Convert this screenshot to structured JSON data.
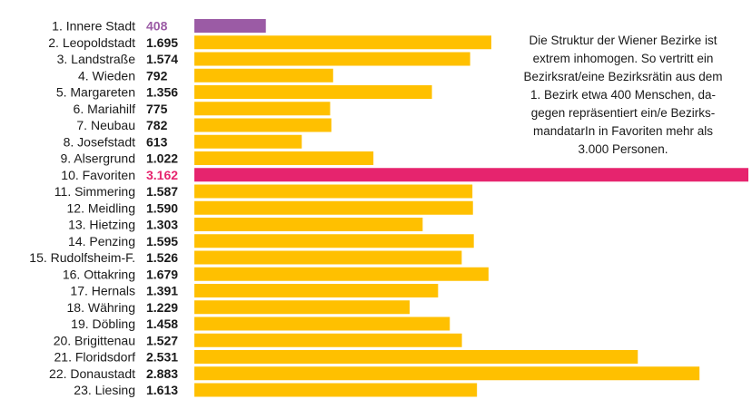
{
  "chart_data": {
    "type": "bar",
    "orientation": "horizontal",
    "title": "",
    "xlabel": "",
    "ylabel": "",
    "xlim": [
      0,
      3162
    ],
    "grid": false,
    "legend": "none",
    "categories": [
      "1. Innere Stadt",
      "2. Leopoldstadt",
      "3. Landstraße",
      "4. Wieden",
      "5. Margareten",
      "6. Mariahilf",
      "7. Neubau",
      "8. Josefstadt",
      "9. Alsergrund",
      "10. Favoriten",
      "11. Simmering",
      "12. Meidling",
      "13. Hietzing",
      "14. Penzing",
      "15. Rudolfsheim-F.",
      "16. Ottakring",
      "17. Hernals",
      "18. Währing",
      "19. Döbling",
      "20. Brigittenau",
      "21. Floridsdorf",
      "22. Donaustadt",
      "23. Liesing"
    ],
    "values": [
      408,
      1695,
      1574,
      792,
      1356,
      775,
      782,
      613,
      1022,
      3162,
      1587,
      1590,
      1303,
      1595,
      1526,
      1679,
      1391,
      1229,
      1458,
      1527,
      2531,
      2883,
      1613
    ],
    "value_labels": [
      "408",
      "1.695",
      "1.574",
      "792",
      "1.356",
      "775",
      "782",
      "613",
      "1.022",
      "3.162",
      "1.587",
      "1.590",
      "1.303",
      "1.595",
      "1.526",
      "1.679",
      "1.391",
      "1.229",
      "1.458",
      "1.527",
      "2.531",
      "2.883",
      "1.613"
    ],
    "highlights": {
      "min_index": 0,
      "max_index": 9
    },
    "colors": {
      "default_bar": "#FFC000",
      "min_bar": "#9B5BA5",
      "max_bar": "#E6246E",
      "default_label": "#1a1a1a",
      "min_label": "#9B5BA5",
      "max_label": "#E6246E"
    },
    "annotation": "Die Struktur der Wiener Bezirke ist\nextrem inhomogen. So vertritt ein\nBezirksrat/eine Bezirksrätin aus dem\n1. Bezirk etwa 400 Menschen, da-\ngegen repräsentiert ein/e Bezirks-\nmandatarIn in Favoriten mehr als\n3.000 Personen."
  }
}
